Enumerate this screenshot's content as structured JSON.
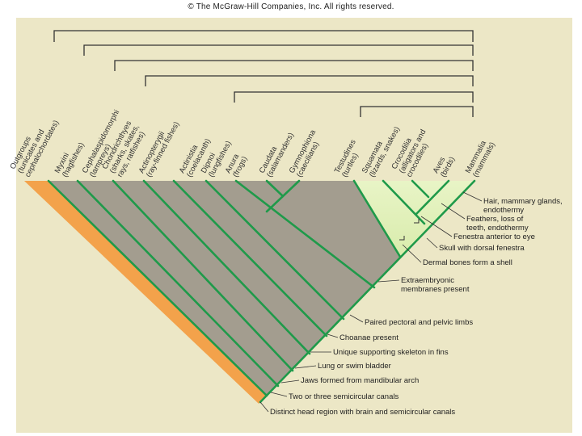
{
  "copyright": "© The McGraw-Hill Companies, Inc. All rights reserved.",
  "taxa": [
    {
      "l1": "Outgroups",
      "l2": "(tunicates and",
      "l3": "cephalochordates)"
    },
    {
      "l1": "Myxini",
      "l2": "(hagfishes)"
    },
    {
      "l1": "Cephalaspidomorphi",
      "l2": "(lampreys)"
    },
    {
      "l1": "Chondrichthyes",
      "l2": "(sharks, skates,",
      "l3": "rays, ratfishes)"
    },
    {
      "l1": "Actinopterygii",
      "l2": "(ray-finned fishes)"
    },
    {
      "l1": "Actinistia",
      "l2": "(coelacanth)"
    },
    {
      "l1": "Dipnoi",
      "l2": "(lungfishes)"
    },
    {
      "l1": "Anura",
      "l2": "(frogs)"
    },
    {
      "l1": "Caudata",
      "l2": "(salamanders)"
    },
    {
      "l1": "Gymnophiona",
      "l2": "(caecilians)"
    },
    {
      "l1": "Testudines",
      "l2": "(turtles)"
    },
    {
      "l1": "Squamata",
      "l2": "(lizards, snakes)"
    },
    {
      "l1": "Crocodilia",
      "l2": "(alligators and",
      "l3": "crocodiles)"
    },
    {
      "l1": "Aves",
      "l2": "(birds)"
    },
    {
      "l1": "Mammalia",
      "l2": "(mammals)"
    }
  ],
  "characters": [
    {
      "l1": "Hair, mammary glands,",
      "l2": "endothermy"
    },
    {
      "l1": "Feathers, loss of",
      "l2": "teeth, endothermy"
    },
    {
      "l1": "Fenestra anterior to eye"
    },
    {
      "l1": "Skull with dorsal fenestra"
    },
    {
      "l1": "Dermal bones form a shell"
    },
    {
      "l1": "Extraembryonic",
      "l2": "membranes present"
    },
    {
      "l1": "Paired pectoral and pelvic limbs"
    },
    {
      "l1": "Choanae present"
    },
    {
      "l1": "Unique supporting skeleton in fins"
    },
    {
      "l1": "Lung or swim bladder"
    },
    {
      "l1": "Jaws formed from mandibular arch"
    },
    {
      "l1": "Two or three semicircular canals"
    },
    {
      "l1": "Distinct head region with brain and semicircular canals"
    }
  ],
  "colors": {
    "background": "#ece7c6",
    "vertebrate_fill": "#a39d8f",
    "outgroup_fill": "#f3a24b",
    "amniote_fill": "#d9ecac",
    "amniote_fill_light": "#e8f4c6",
    "branch_line": "#1f9a4a",
    "bracket_line": "#333333"
  }
}
